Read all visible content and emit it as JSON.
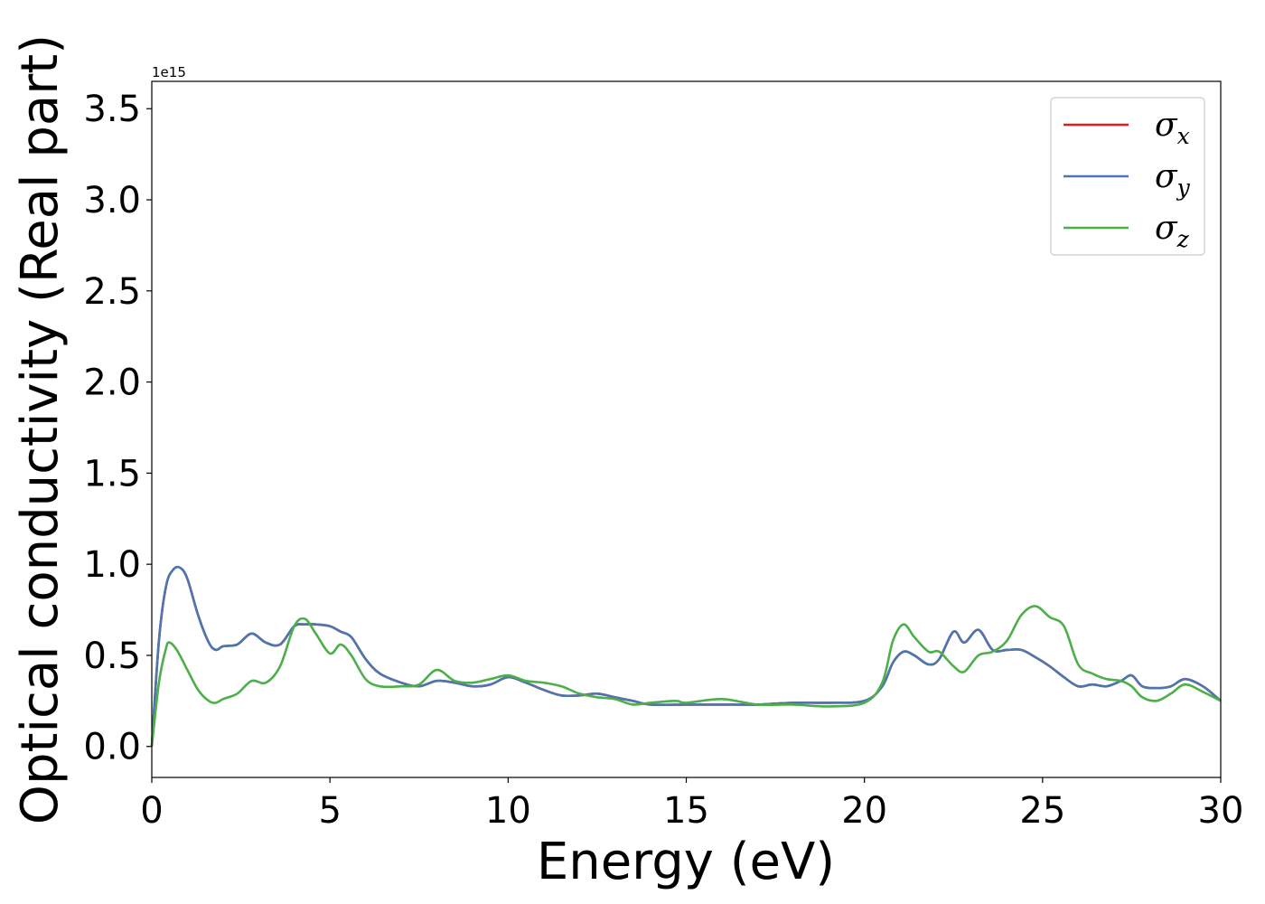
{
  "chart_data": {
    "type": "line",
    "xlabel": "Energy (eV)",
    "ylabel": "Optical conductivity (Real part)",
    "y_offset_label": "1e15",
    "xlim": [
      0,
      30
    ],
    "ylim": [
      -0.17,
      3.65
    ],
    "x_ticks": [
      0,
      5,
      10,
      15,
      20,
      25,
      30
    ],
    "x_tick_labels": [
      "0",
      "5",
      "10",
      "15",
      "20",
      "25",
      "30"
    ],
    "y_ticks": [
      0,
      0.5,
      1.0,
      1.5,
      2.0,
      2.5,
      3.0,
      3.5
    ],
    "y_tick_labels": [
      "0.0",
      "0.5",
      "1.0",
      "1.5",
      "2.0",
      "2.5",
      "3.0",
      "3.5"
    ],
    "grid": false,
    "legend_position": "top-right",
    "series": [
      {
        "name": "σx",
        "symbol": "σ",
        "subscript": "x",
        "color": "#e41a1c",
        "x": [
          0,
          0.2,
          0.4,
          0.6,
          0.8,
          1.0,
          1.3,
          1.6,
          1.8,
          2.0,
          2.4,
          2.8,
          3.2,
          3.6,
          4.0,
          4.3,
          4.6,
          5.0,
          5.3,
          5.6,
          6.0,
          6.4,
          7.0,
          7.5,
          8.0,
          8.5,
          9.0,
          9.5,
          10.0,
          10.5,
          11.0,
          11.5,
          12.0,
          12.5,
          13.0,
          13.5,
          14.0,
          15.0,
          16.0,
          17.0,
          18.0,
          19.0,
          20.0,
          20.5,
          20.8,
          21.1,
          21.4,
          21.8,
          22.1,
          22.5,
          22.8,
          23.2,
          23.6,
          24.0,
          24.4,
          24.8,
          25.2,
          25.6,
          26.0,
          26.4,
          26.8,
          27.2,
          27.5,
          27.8,
          28.2,
          28.6,
          29.0,
          29.5,
          30.0
        ],
        "values": [
          0.0,
          0.58,
          0.88,
          0.97,
          0.98,
          0.92,
          0.72,
          0.57,
          0.53,
          0.55,
          0.56,
          0.62,
          0.57,
          0.56,
          0.66,
          0.67,
          0.67,
          0.66,
          0.63,
          0.6,
          0.48,
          0.4,
          0.35,
          0.33,
          0.36,
          0.35,
          0.33,
          0.34,
          0.38,
          0.35,
          0.31,
          0.28,
          0.28,
          0.29,
          0.27,
          0.25,
          0.23,
          0.23,
          0.23,
          0.23,
          0.24,
          0.24,
          0.25,
          0.33,
          0.46,
          0.52,
          0.5,
          0.45,
          0.48,
          0.63,
          0.57,
          0.64,
          0.53,
          0.53,
          0.53,
          0.49,
          0.44,
          0.38,
          0.33,
          0.34,
          0.33,
          0.36,
          0.39,
          0.33,
          0.32,
          0.33,
          0.37,
          0.33,
          0.25
        ]
      },
      {
        "name": "σy",
        "symbol": "σ",
        "subscript": "y",
        "color": "#4a77b0",
        "x": [
          0,
          0.2,
          0.4,
          0.6,
          0.8,
          1.0,
          1.3,
          1.6,
          1.8,
          2.0,
          2.4,
          2.8,
          3.2,
          3.6,
          4.0,
          4.3,
          4.6,
          5.0,
          5.3,
          5.6,
          6.0,
          6.4,
          7.0,
          7.5,
          8.0,
          8.5,
          9.0,
          9.5,
          10.0,
          10.5,
          11.0,
          11.5,
          12.0,
          12.5,
          13.0,
          13.5,
          14.0,
          15.0,
          16.0,
          17.0,
          18.0,
          19.0,
          20.0,
          20.5,
          20.8,
          21.1,
          21.4,
          21.8,
          22.1,
          22.5,
          22.8,
          23.2,
          23.6,
          24.0,
          24.4,
          24.8,
          25.2,
          25.6,
          26.0,
          26.4,
          26.8,
          27.2,
          27.5,
          27.8,
          28.2,
          28.6,
          29.0,
          29.5,
          30.0
        ],
        "values": [
          0.0,
          0.58,
          0.88,
          0.97,
          0.98,
          0.92,
          0.72,
          0.57,
          0.53,
          0.55,
          0.56,
          0.62,
          0.57,
          0.56,
          0.66,
          0.67,
          0.67,
          0.66,
          0.63,
          0.6,
          0.48,
          0.4,
          0.35,
          0.33,
          0.36,
          0.35,
          0.33,
          0.34,
          0.38,
          0.35,
          0.31,
          0.28,
          0.28,
          0.29,
          0.27,
          0.25,
          0.23,
          0.23,
          0.23,
          0.23,
          0.24,
          0.24,
          0.25,
          0.33,
          0.46,
          0.52,
          0.5,
          0.45,
          0.48,
          0.63,
          0.57,
          0.64,
          0.53,
          0.53,
          0.53,
          0.49,
          0.44,
          0.38,
          0.33,
          0.34,
          0.33,
          0.36,
          0.39,
          0.33,
          0.32,
          0.33,
          0.37,
          0.33,
          0.25
        ]
      },
      {
        "name": "σz",
        "symbol": "σ",
        "subscript": "z",
        "color": "#4daf4a",
        "x": [
          0,
          0.2,
          0.4,
          0.5,
          0.7,
          1.0,
          1.3,
          1.6,
          1.8,
          2.0,
          2.4,
          2.8,
          3.2,
          3.6,
          4.0,
          4.3,
          4.6,
          5.0,
          5.3,
          5.6,
          6.0,
          6.4,
          7.0,
          7.5,
          8.0,
          8.5,
          9.0,
          9.5,
          10.0,
          10.5,
          11.0,
          11.5,
          12.0,
          12.5,
          13.0,
          13.5,
          14.0,
          14.7,
          15.0,
          16.0,
          17.0,
          18.0,
          19.0,
          20.0,
          20.5,
          20.8,
          21.1,
          21.4,
          21.8,
          22.1,
          22.5,
          22.8,
          23.2,
          23.6,
          24.0,
          24.4,
          24.8,
          25.2,
          25.6,
          26.0,
          26.4,
          26.8,
          27.2,
          27.5,
          27.8,
          28.2,
          28.6,
          29.0,
          29.5,
          30.0
        ],
        "values": [
          0.0,
          0.35,
          0.54,
          0.57,
          0.53,
          0.42,
          0.31,
          0.25,
          0.24,
          0.26,
          0.29,
          0.36,
          0.35,
          0.44,
          0.66,
          0.7,
          0.62,
          0.51,
          0.56,
          0.5,
          0.37,
          0.33,
          0.33,
          0.34,
          0.42,
          0.36,
          0.35,
          0.37,
          0.39,
          0.36,
          0.35,
          0.33,
          0.29,
          0.27,
          0.26,
          0.23,
          0.24,
          0.25,
          0.24,
          0.26,
          0.23,
          0.23,
          0.22,
          0.24,
          0.35,
          0.58,
          0.67,
          0.6,
          0.52,
          0.52,
          0.44,
          0.41,
          0.5,
          0.52,
          0.58,
          0.72,
          0.77,
          0.71,
          0.66,
          0.45,
          0.4,
          0.37,
          0.36,
          0.33,
          0.27,
          0.25,
          0.29,
          0.34,
          0.3,
          0.25
        ]
      }
    ]
  }
}
